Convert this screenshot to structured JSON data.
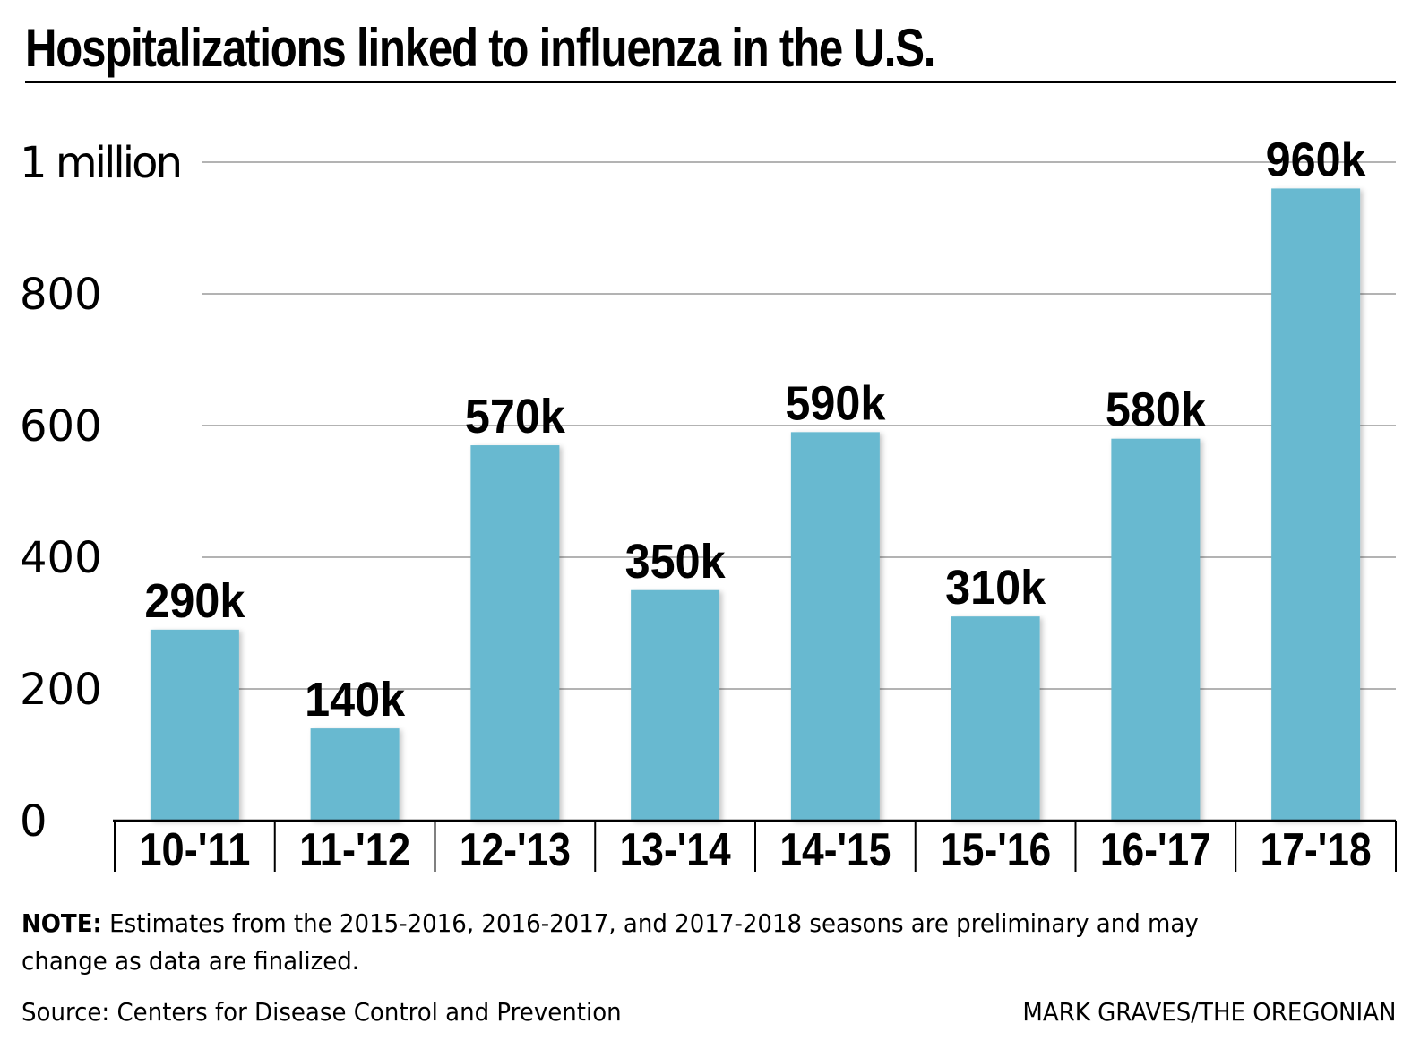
{
  "chart_data": {
    "type": "bar",
    "title": "Hospitalizations linked to influenza in the U.S.",
    "categories": [
      "10-'11",
      "11-'12",
      "12-'13",
      "13-'14",
      "14-'15",
      "15-'16",
      "16-'17",
      "17-'18"
    ],
    "values": [
      290,
      140,
      570,
      350,
      590,
      310,
      580,
      960
    ],
    "value_labels": [
      "290k",
      "140k",
      "570k",
      "350k",
      "590k",
      "310k",
      "580k",
      "960k"
    ],
    "unit": "thousands",
    "ylim": [
      0,
      1000
    ],
    "yticks": [
      0,
      200,
      400,
      600,
      800,
      1000
    ],
    "ytick_labels": [
      "0",
      "200",
      "400",
      "600",
      "800",
      "1 million"
    ],
    "xlabel": "",
    "ylabel": "",
    "grid": true,
    "bar_color": "#68b9d0",
    "grid_color": "#9a9a9a",
    "text_color": "#000000"
  },
  "note": {
    "label": "NOTE:",
    "text": " Estimates from the 2015-2016, 2016-2017, and 2017-2018 seasons are preliminary and may change as data are finalized."
  },
  "source": "Source: Centers for Disease Control and Prevention",
  "credit": "MARK GRAVES/THE OREGONIAN"
}
